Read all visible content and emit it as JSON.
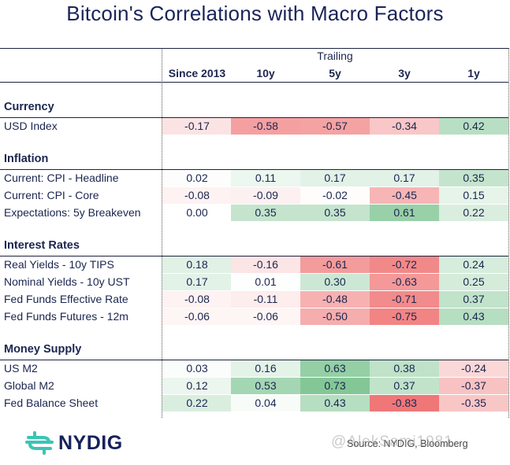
{
  "title": "Bitcoin's Correlations with Macro Factors",
  "chart_data": {
    "type": "heatmap",
    "title": "Bitcoin's Correlations with Macro Factors",
    "column_group_label": "Trailing",
    "columns": [
      "Since 2013",
      "10y",
      "5y",
      "3y",
      "1y"
    ],
    "color_scale": {
      "negative": "#f07474",
      "zero": "#ffffff",
      "positive": "#6fbe85",
      "range": [
        -1,
        1
      ]
    },
    "sections": [
      {
        "name": "Currency",
        "rows": [
          {
            "label": "USD Index",
            "values": [
              -0.17,
              -0.58,
              -0.57,
              -0.34,
              0.42
            ]
          }
        ]
      },
      {
        "name": "Inflation",
        "rows": [
          {
            "label": "Current: CPI - Headline",
            "values": [
              0.02,
              0.11,
              0.17,
              0.17,
              0.35
            ]
          },
          {
            "label": "Current: CPI - Core",
            "values": [
              -0.08,
              -0.09,
              -0.02,
              -0.45,
              0.15
            ]
          },
          {
            "label": "Expectations: 5y Breakeven",
            "values": [
              0.0,
              0.35,
              0.35,
              0.61,
              0.22
            ]
          }
        ]
      },
      {
        "name": "Interest Rates",
        "rows": [
          {
            "label": "Real Yields - 10y TIPS",
            "values": [
              0.18,
              -0.16,
              -0.61,
              -0.72,
              0.24
            ]
          },
          {
            "label": "Nominal Yields - 10y UST",
            "values": [
              0.17,
              0.01,
              0.3,
              -0.63,
              0.25
            ]
          },
          {
            "label": "Fed Funds Effective Rate",
            "values": [
              -0.08,
              -0.11,
              -0.48,
              -0.71,
              0.37
            ]
          },
          {
            "label": "Fed Funds Futures - 12m",
            "values": [
              -0.06,
              -0.06,
              -0.5,
              -0.75,
              0.43
            ]
          }
        ]
      },
      {
        "name": "Money Supply",
        "rows": [
          {
            "label": "US M2",
            "values": [
              0.03,
              0.16,
              0.63,
              0.38,
              -0.24
            ]
          },
          {
            "label": "Global M2",
            "values": [
              0.12,
              0.53,
              0.73,
              0.37,
              -0.37
            ]
          },
          {
            "label": "Fed Balance Sheet",
            "values": [
              0.22,
              0.04,
              0.43,
              -0.83,
              -0.35
            ]
          }
        ]
      }
    ]
  },
  "footer": {
    "logo_text": "NYDIG",
    "logo_color": "#3cc4b4",
    "source": "Source: NYDIG, Bloomberg",
    "watermark": "@AlekSami1981"
  }
}
